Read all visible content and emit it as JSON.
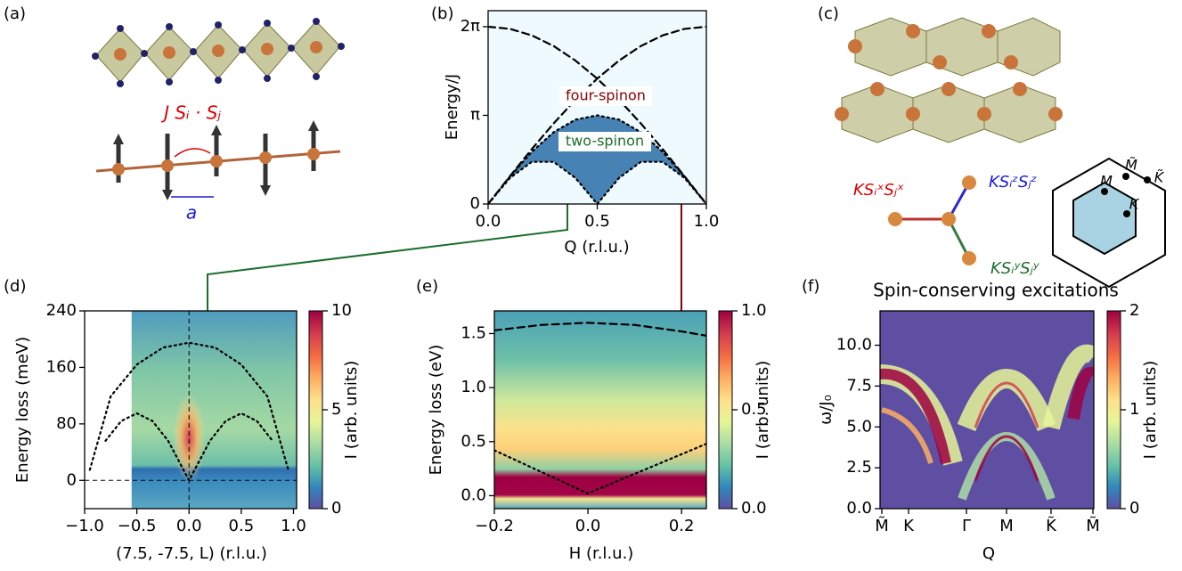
{
  "panel_labels": [
    "(a)",
    "(b)",
    "(c)",
    "(d)",
    "(e)",
    "(f)"
  ],
  "diagram_a": {
    "coupling": "J Sᵢ · Sⱼ",
    "spacing": "a"
  },
  "diagram_c": {
    "couplings": [
      "KSᵢˣSⱼˣ",
      "KSᵢᶻSⱼᶻ",
      "KSᵢʸSⱼʸ"
    ],
    "zone_points": [
      "M̃",
      "K̃",
      "M",
      "K"
    ]
  },
  "chart_data": [
    {
      "type": "line",
      "x_label": "Q (r.l.u.)",
      "y_label": "Energy/J",
      "xlim": [
        0,
        1
      ],
      "ylim": [
        0,
        6.85
      ],
      "xticks": [
        {
          "value": 0,
          "label": "0.0"
        },
        0.5,
        {
          "value": 1,
          "label": "1.0"
        }
      ],
      "yticks": [
        0,
        {
          "value": 3.1416,
          "label": "π"
        },
        {
          "value": 6.2832,
          "label": "2π"
        }
      ],
      "x": [
        0,
        0.1,
        0.2,
        0.3,
        0.4,
        0.5,
        0.6,
        0.7,
        0.8,
        0.9,
        1
      ],
      "series": [
        {
          "style": "dashed",
          "color": "#000000",
          "values": [
            0,
            0.983,
            1.942,
            2.853,
            3.693,
            4.443,
            5.083,
            5.598,
            5.976,
            6.206,
            6.283
          ]
        },
        {
          "style": "dashed",
          "color": "#000000",
          "values": [
            6.283,
            6.206,
            5.976,
            5.598,
            5.083,
            4.443,
            3.693,
            2.853,
            1.942,
            0.983,
            0
          ]
        },
        {
          "style": "dotted",
          "color": "#000000",
          "values": [
            0,
            0.971,
            1.847,
            2.542,
            2.988,
            3.142,
            2.988,
            2.542,
            1.847,
            0.971,
            0
          ]
        },
        {
          "style": "dotted",
          "color": "#000000",
          "values": [
            0,
            0.923,
            1.494,
            1.494,
            0.923,
            0,
            0.923,
            1.494,
            1.494,
            0.923,
            0
          ]
        }
      ],
      "fill_color": "#4682b4",
      "annotations": [
        {
          "text": "four-spinon",
          "color": "#8b0000"
        },
        {
          "text": "two-spinon",
          "color": "#1b6e2c"
        }
      ]
    },
    {
      "type": "heatmap",
      "x_label": "(7.5, -7.5, L) (r.l.u.)",
      "y_label": "Energy loss (meV)",
      "xlim": [
        -1,
        1.03
      ],
      "ylim": [
        -40,
        240
      ],
      "xticks": [
        {
          "value": -1,
          "label": "−1.0"
        },
        {
          "value": -0.5,
          "label": "−0.5"
        },
        {
          "value": 0,
          "label": "0.0"
        },
        0.5,
        {
          "value": 1,
          "label": "1.0"
        }
      ],
      "yticks": [
        0,
        80,
        160,
        240
      ],
      "series": [
        {
          "style": "dotted",
          "color": "#000000",
          "x": [
            -0.95,
            -0.75,
            -0.5,
            -0.25,
            0,
            0.25,
            0.5,
            0.75,
            0.95
          ],
          "values": [
            15,
            119,
            164,
            188,
            195,
            188,
            164,
            119,
            15
          ]
        },
        {
          "style": "dotted",
          "color": "#000000",
          "x": [
            -0.8,
            -0.65,
            -0.5,
            -0.35,
            -0.2,
            0,
            0.2,
            0.35,
            0.5,
            0.65,
            0.8
          ],
          "values": [
            56,
            84,
            95,
            84,
            56,
            0,
            56,
            84,
            95,
            84,
            56
          ]
        }
      ],
      "colorbar": {
        "label": "I (arb. units)",
        "lim": [
          0,
          10
        ],
        "ticks": [
          0,
          5,
          10
        ]
      }
    },
    {
      "type": "heatmap",
      "x_label": "H (r.l.u.)",
      "y_label": "Energy loss (eV)",
      "xlim": [
        -0.2,
        0.253
      ],
      "ylim": [
        -0.12,
        1.71
      ],
      "xticks": [
        {
          "value": -0.2,
          "label": "−0.2"
        },
        {
          "value": 0,
          "label": "0.0"
        },
        0.2
      ],
      "yticks": [
        {
          "value": 0,
          "label": "0.0"
        },
        0.5,
        {
          "value": 1,
          "label": "1.0"
        },
        1.5
      ],
      "series": [
        {
          "style": "dashed",
          "color": "#000000",
          "x": [
            -0.2,
            -0.1,
            0,
            0.1,
            0.2,
            0.253
          ],
          "values": [
            1.53,
            1.58,
            1.6,
            1.58,
            1.52,
            1.48
          ]
        },
        {
          "style": "dotted",
          "color": "#000000",
          "x": [
            -0.2,
            0,
            0.253
          ],
          "values": [
            0.42,
            0.02,
            0.48
          ]
        }
      ],
      "colorbar": {
        "label": "I (arb. units)",
        "lim": [
          0,
          1
        ],
        "ticks": [
          {
            "value": 0,
            "label": "0.0"
          },
          0.5,
          {
            "value": 1,
            "label": "1.0"
          }
        ]
      }
    },
    {
      "type": "heatmap",
      "title": "Spin-conserving excitations",
      "x_label": "Q",
      "y_label": "ω/J₀",
      "ylim": [
        0,
        12.1
      ],
      "categories": [
        "M̃",
        "K",
        "Γ",
        "M",
        "K̃",
        "M̃"
      ],
      "yticks": [
        {
          "value": 0,
          "label": "0.0"
        },
        2.5,
        {
          "value": 5,
          "label": "5.0"
        },
        7.5,
        {
          "value": 10,
          "label": "10.0"
        }
      ],
      "colorbar": {
        "label": "I (arb. units)",
        "lim": [
          0,
          2
        ],
        "ticks": [
          0,
          1,
          2
        ]
      }
    }
  ]
}
